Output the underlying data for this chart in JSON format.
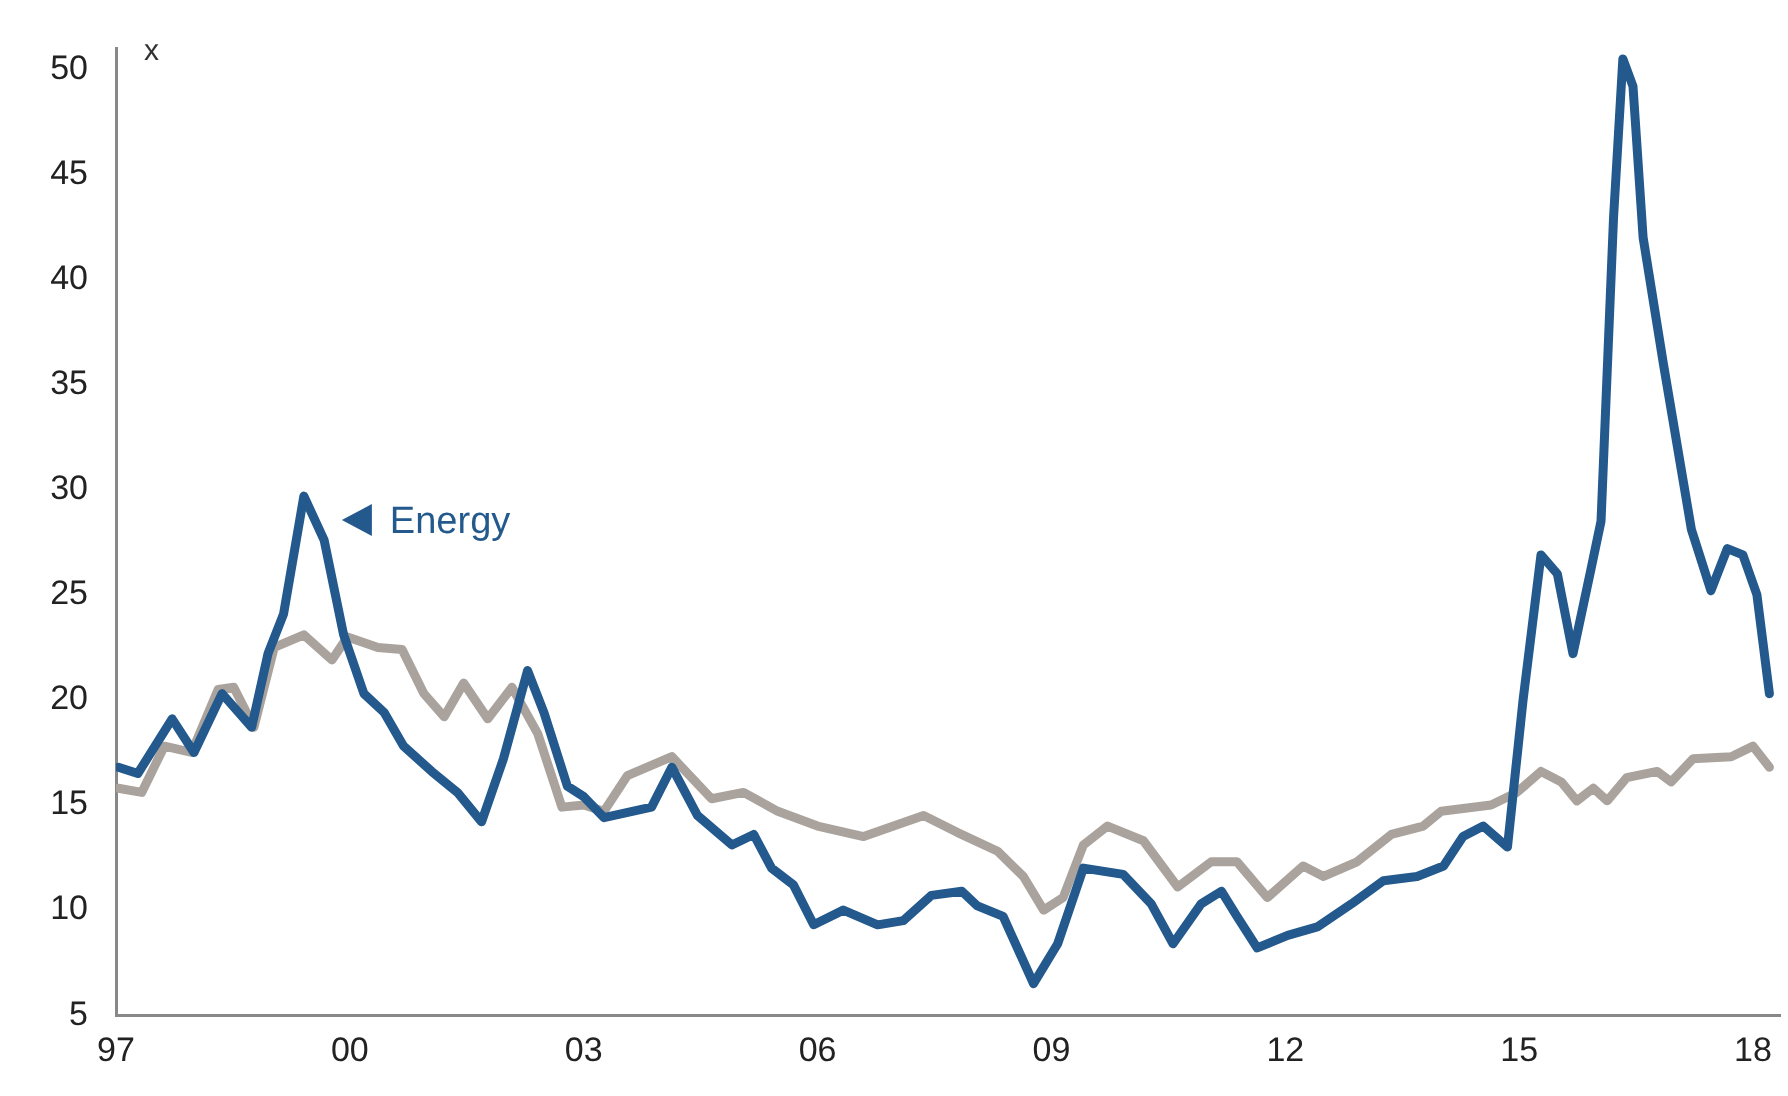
{
  "chart_data": {
    "type": "line",
    "ylabel": "x",
    "xlim": [
      1997,
      2018.35
    ],
    "ylim": [
      5,
      51
    ],
    "xticks": [
      {
        "value": 1997,
        "label": "97"
      },
      {
        "value": 2000,
        "label": "00"
      },
      {
        "value": 2003,
        "label": "03"
      },
      {
        "value": 2006,
        "label": "06"
      },
      {
        "value": 2009,
        "label": "09"
      },
      {
        "value": 2012,
        "label": "12"
      },
      {
        "value": 2015,
        "label": "15"
      },
      {
        "value": 2018,
        "label": "18"
      }
    ],
    "yticks": [
      5,
      10,
      15,
      20,
      25,
      30,
      35,
      40,
      45,
      50
    ],
    "grid": false,
    "legend": "top left",
    "marker": "none",
    "line_style": "solid",
    "series": [
      {
        "name": "Energy",
        "color": "#23598c",
        "x": [
          1997.03,
          1997.28,
          1997.72,
          1998.0,
          1998.36,
          1998.74,
          1998.95,
          1999.15,
          1999.41,
          1999.67,
          1999.92,
          2000.18,
          2000.44,
          2000.69,
          2001.05,
          2001.38,
          2001.69,
          2001.97,
          2002.28,
          2002.49,
          2002.79,
          2003.0,
          2003.26,
          2003.87,
          2004.13,
          2004.46,
          2004.9,
          2005.18,
          2005.41,
          2005.69,
          2005.95,
          2006.33,
          2006.77,
          2007.1,
          2007.46,
          2007.85,
          2008.05,
          2008.38,
          2008.77,
          2009.08,
          2009.41,
          2009.92,
          2010.28,
          2010.56,
          2010.92,
          2011.18,
          2011.38,
          2011.64,
          2012.03,
          2012.41,
          2012.85,
          2013.26,
          2013.69,
          2014.03,
          2014.28,
          2014.54,
          2014.85,
          2015.05,
          2015.28,
          2015.49,
          2015.69,
          2015.92,
          2016.05,
          2016.21,
          2016.33,
          2016.46,
          2016.59,
          2016.85,
          2017.21,
          2017.46,
          2017.67,
          2017.87,
          2018.05,
          2018.21
        ],
        "values": [
          16.8,
          16.5,
          19.1,
          17.5,
          20.3,
          18.7,
          22.2,
          24.1,
          29.7,
          27.6,
          23.1,
          20.3,
          19.4,
          17.8,
          16.6,
          15.6,
          14.2,
          17.2,
          21.4,
          19.4,
          15.9,
          15.4,
          14.4,
          14.9,
          16.8,
          14.5,
          13.1,
          13.6,
          12.0,
          11.2,
          9.3,
          10.0,
          9.3,
          9.5,
          10.7,
          10.9,
          10.2,
          9.7,
          6.5,
          8.4,
          12.0,
          11.7,
          10.3,
          8.4,
          10.3,
          10.9,
          9.7,
          8.2,
          8.8,
          9.2,
          10.3,
          11.4,
          11.6,
          12.1,
          13.5,
          14.0,
          13.0,
          20.0,
          26.9,
          26.0,
          22.2,
          26.2,
          28.5,
          42.9,
          50.5,
          49.2,
          42.0,
          36.0,
          28.1,
          25.2,
          27.2,
          26.9,
          25.0,
          20.3
        ]
      },
      {
        "color": "#aaa39d",
        "x": [
          1997.03,
          1997.33,
          1997.62,
          1997.97,
          1998.31,
          1998.51,
          1998.77,
          1999.03,
          1999.41,
          1999.77,
          1999.97,
          2000.36,
          2000.67,
          2000.95,
          2001.21,
          2001.46,
          2001.77,
          2002.08,
          2002.41,
          2002.72,
          2003.0,
          2003.26,
          2003.56,
          2004.13,
          2004.64,
          2005.05,
          2005.49,
          2006.0,
          2006.59,
          2007.36,
          2007.79,
          2008.31,
          2008.64,
          2008.9,
          2009.15,
          2009.41,
          2009.72,
          2010.18,
          2010.62,
          2011.05,
          2011.38,
          2011.77,
          2012.23,
          2012.49,
          2012.92,
          2013.36,
          2013.77,
          2014.0,
          2014.64,
          2014.97,
          2015.28,
          2015.54,
          2015.74,
          2015.95,
          2016.13,
          2016.38,
          2016.77,
          2016.95,
          2017.23,
          2017.72,
          2018.0,
          2018.21
        ],
        "values": [
          15.8,
          15.6,
          17.8,
          17.5,
          20.5,
          20.6,
          18.7,
          22.5,
          23.1,
          21.9,
          23.0,
          22.5,
          22.4,
          20.3,
          19.2,
          20.8,
          19.1,
          20.6,
          18.4,
          14.9,
          15.0,
          14.7,
          16.4,
          17.3,
          15.3,
          15.6,
          14.7,
          14.0,
          13.5,
          14.5,
          13.7,
          12.8,
          11.6,
          10.0,
          10.6,
          13.1,
          14.0,
          13.3,
          11.1,
          12.3,
          12.3,
          10.6,
          12.1,
          11.6,
          12.3,
          13.6,
          14.0,
          14.7,
          15.0,
          15.6,
          16.6,
          16.1,
          15.2,
          15.8,
          15.2,
          16.3,
          16.6,
          16.1,
          17.2,
          17.3,
          17.8,
          16.8
        ]
      }
    ]
  }
}
